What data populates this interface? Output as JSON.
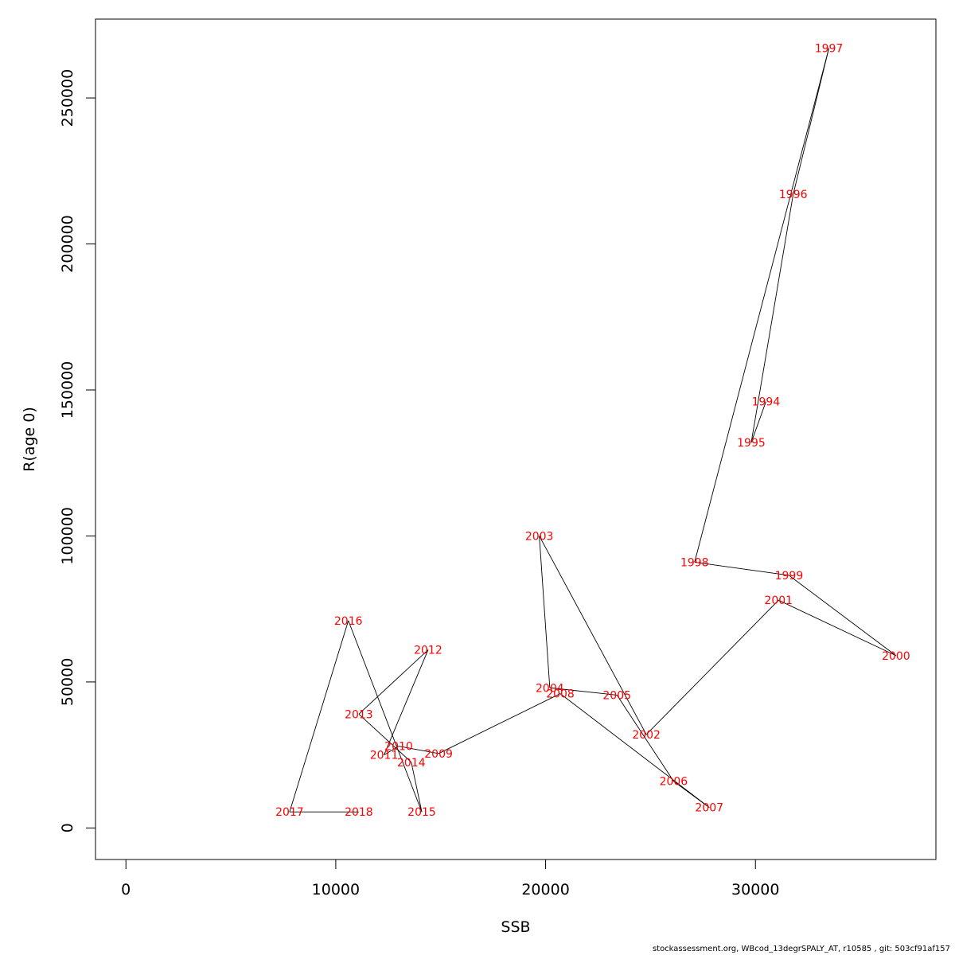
{
  "chart_data": {
    "type": "line",
    "title": "",
    "xlabel": "SSB",
    "ylabel": "R(age 0)",
    "xlim": [
      -1450,
      38600
    ],
    "ylim": [
      -10800,
      277000
    ],
    "grid": false,
    "x_ticks": [
      0,
      10000,
      20000,
      30000
    ],
    "x_tick_labels": [
      "0",
      "10000",
      "20000",
      "30000"
    ],
    "y_ticks": [
      0,
      50000,
      100000,
      150000,
      200000,
      250000
    ],
    "y_tick_labels": [
      "0",
      "50000",
      "100000",
      "150000",
      "200000",
      "250000"
    ],
    "line_color": "#000000",
    "label_color": "#ff0000",
    "series": [
      {
        "points": [
          {
            "label": "1994",
            "x": 30500,
            "y": 146000
          },
          {
            "label": "1995",
            "x": 29800,
            "y": 132000
          },
          {
            "label": "1996",
            "x": 31800,
            "y": 217000
          },
          {
            "label": "1997",
            "x": 33500,
            "y": 267000
          },
          {
            "label": "1998",
            "x": 27100,
            "y": 91000
          },
          {
            "label": "1999",
            "x": 31600,
            "y": 86500
          },
          {
            "label": "2000",
            "x": 36700,
            "y": 59000
          },
          {
            "label": "2001",
            "x": 31100,
            "y": 78000
          },
          {
            "label": "2002",
            "x": 24800,
            "y": 32000
          },
          {
            "label": "2003",
            "x": 19700,
            "y": 100000
          },
          {
            "label": "2004",
            "x": 20200,
            "y": 48000
          },
          {
            "label": "2005",
            "x": 23400,
            "y": 45500
          },
          {
            "label": "2006",
            "x": 26100,
            "y": 16000
          },
          {
            "label": "2007",
            "x": 27800,
            "y": 7000
          },
          {
            "label": "2008",
            "x": 20700,
            "y": 46000
          },
          {
            "label": "2009",
            "x": 14900,
            "y": 25500
          },
          {
            "label": "2010",
            "x": 13000,
            "y": 28000
          },
          {
            "label": "2011",
            "x": 12300,
            "y": 25000
          },
          {
            "label": "2012",
            "x": 14400,
            "y": 61000
          },
          {
            "label": "2013",
            "x": 11100,
            "y": 39000
          },
          {
            "label": "2014",
            "x": 13600,
            "y": 22500
          },
          {
            "label": "2015",
            "x": 14100,
            "y": 5500
          },
          {
            "label": "2016",
            "x": 10600,
            "y": 71000
          },
          {
            "label": "2017",
            "x": 7800,
            "y": 5500
          },
          {
            "label": "2018",
            "x": 11100,
            "y": 5500
          }
        ]
      }
    ]
  },
  "footer_text": "stockassessment.org, WBcod_13degrSPALY_AT, r10585 , git: 503cf91af157"
}
